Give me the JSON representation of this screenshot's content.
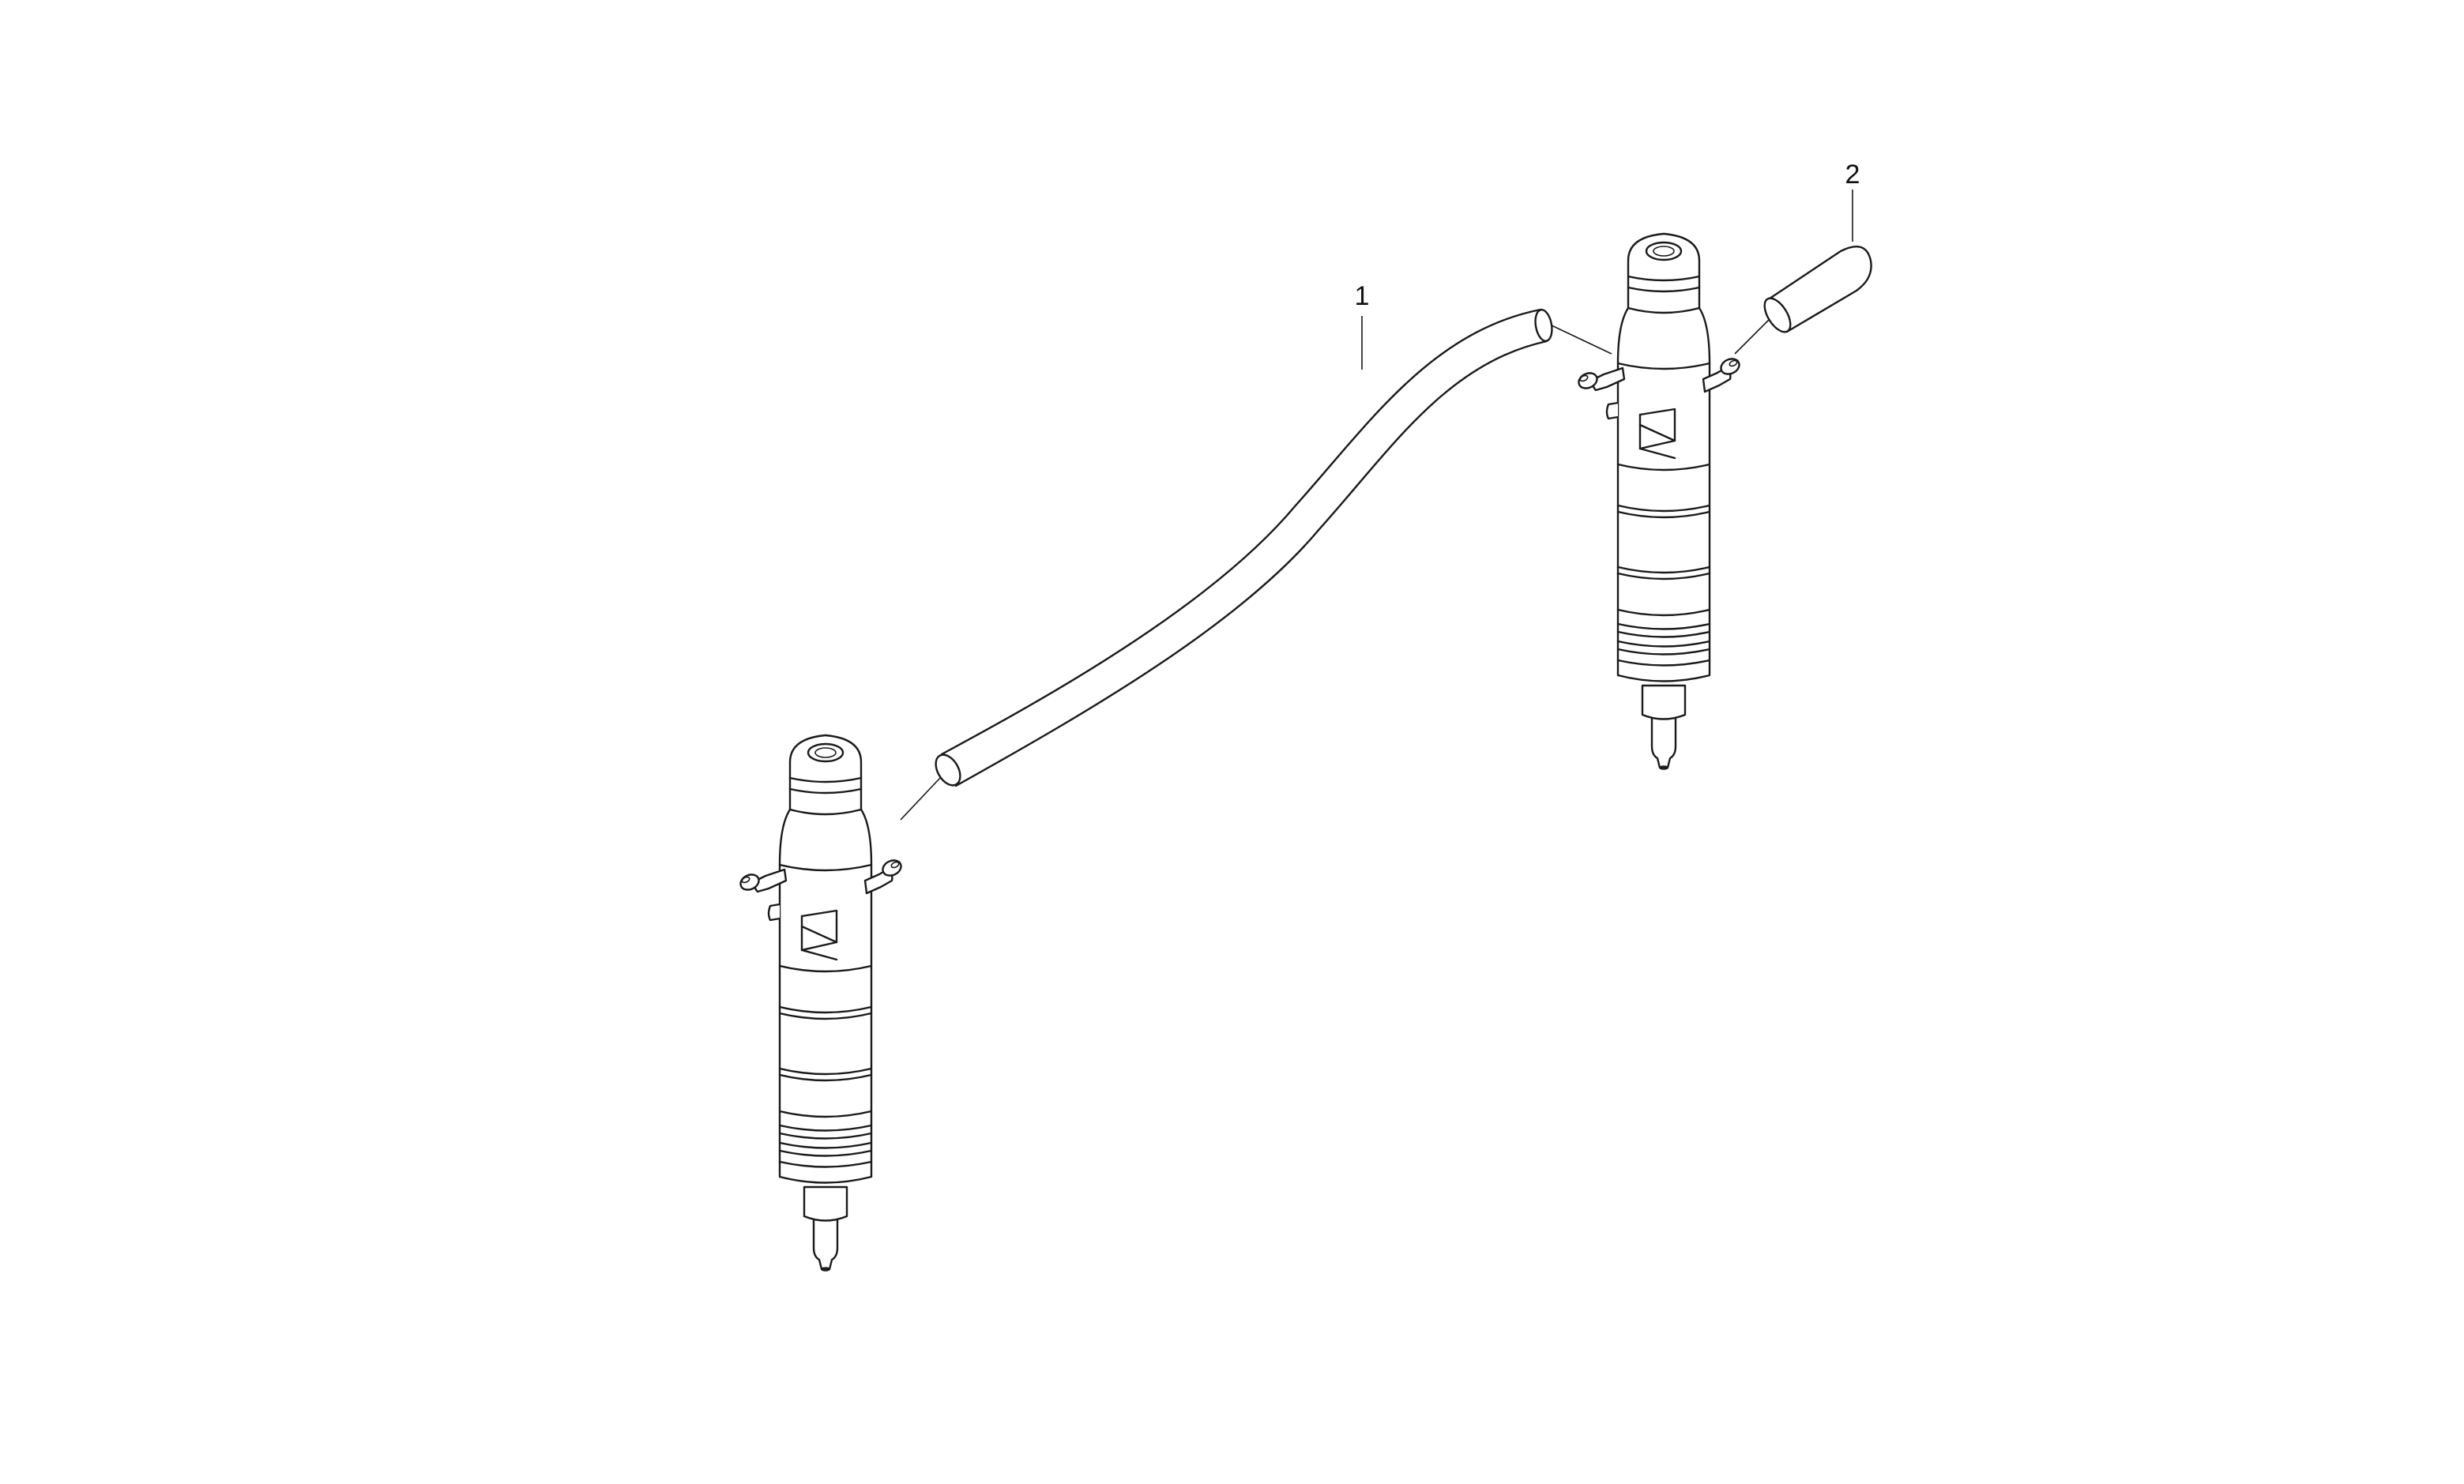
{
  "callouts": [
    {
      "id": "hose",
      "label": "1"
    },
    {
      "id": "cap",
      "label": "2"
    }
  ],
  "parts": {
    "left_injector": "injector-icon",
    "right_injector": "injector-icon",
    "leak_off_hose": "hose-icon",
    "blanking_cap": "cap-icon"
  }
}
